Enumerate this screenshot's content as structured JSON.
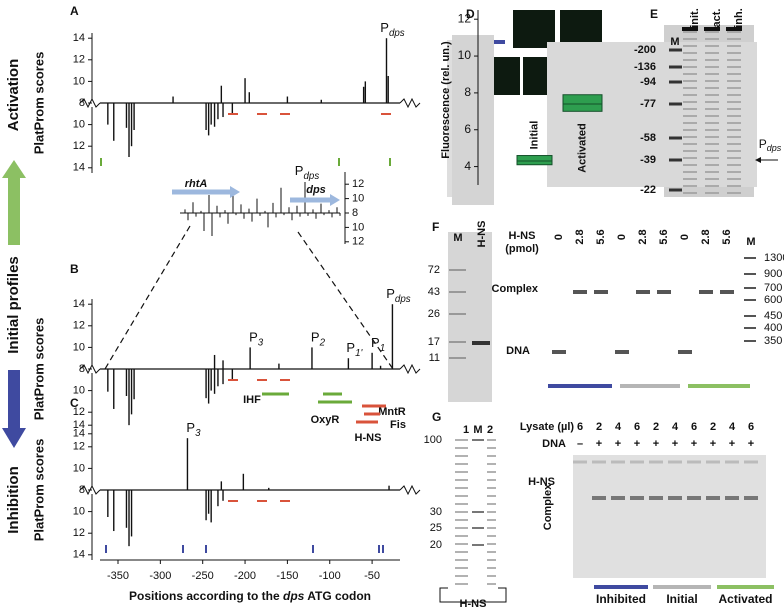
{
  "side_labels": [
    "Activation",
    "Initial profiles",
    "Inhibition"
  ],
  "panel_letters": [
    "A",
    "B",
    "C",
    "D",
    "E",
    "F",
    "G"
  ],
  "profiles": {
    "y_label": "PlatProm scores",
    "upper_ticks": [
      8,
      10,
      12,
      14
    ],
    "lower_ticks": [
      10,
      12,
      14
    ],
    "x_ticks": [
      -350,
      -300,
      -250,
      -200,
      -150,
      -100,
      -50
    ],
    "x_label": [
      "Positions according to the ",
      "dps",
      " ATG codon"
    ],
    "panels": [
      {
        "forward": {
          "positions": [
            -285,
            -228,
            -200,
            -195,
            -150,
            -110,
            -60,
            -58,
            -33,
            -31
          ],
          "scores": [
            8.6,
            9.6,
            10.3,
            9.0,
            8.6,
            8.3,
            9.5,
            10.0,
            14.0,
            10.5
          ]
        },
        "reverse": {
          "positions": [
            -362,
            -355,
            -340,
            -337,
            -334,
            -331,
            -246,
            -243,
            -240,
            -236,
            -232,
            -226,
            -215
          ],
          "scores": [
            10.0,
            11.5,
            10.3,
            13.0,
            12.0,
            10.5,
            10.5,
            11.0,
            10.0,
            10.2,
            9.5,
            9.3,
            9.0
          ]
        },
        "promoters": [
          {
            "name": "P",
            "sub": "dps",
            "position": -33
          }
        ]
      },
      {
        "forward": {
          "positions": [
            -236,
            -226,
            -194,
            -160,
            -121,
            -78,
            -50,
            -40,
            -26
          ],
          "scores": [
            9.3,
            8.8,
            10.0,
            8.5,
            10.0,
            9.0,
            9.5,
            8.3,
            14.0
          ]
        },
        "reverse": {
          "positions": [
            -362,
            -355,
            -340,
            -337,
            -334,
            -331,
            -246,
            -243,
            -240,
            -236,
            -232,
            -226,
            -215
          ],
          "scores": [
            10.1,
            11.7,
            10.5,
            13.2,
            12.2,
            10.8,
            10.7,
            11.2,
            10.0,
            10.3,
            9.6,
            9.4,
            9.0
          ]
        },
        "promoters": [
          {
            "name": "P",
            "sub": "3",
            "position": -194
          },
          {
            "name": "P",
            "sub": "2",
            "position": -121
          },
          {
            "name": "P",
            "sub": "1'",
            "position": -78
          },
          {
            "name": "P",
            "sub": "1",
            "position": -50
          },
          {
            "name": "P",
            "sub": "dps",
            "position": -26
          }
        ]
      },
      {
        "forward": {
          "positions": [
            -268,
            -228,
            -202,
            -172,
            -30
          ],
          "scores": [
            12.8,
            8.8,
            9.5,
            8.2,
            8.4
          ]
        },
        "reverse": {
          "positions": [
            -362,
            -355,
            -340,
            -337,
            -334,
            -246,
            -243,
            -240,
            -232,
            -226
          ],
          "scores": [
            10.5,
            11.8,
            11.5,
            13.2,
            12.3,
            10.8,
            10.2,
            11.0,
            9.5,
            9.0
          ]
        },
        "promoters": [
          {
            "name": "P",
            "sub": "3",
            "position": -268
          }
        ]
      }
    ]
  },
  "inset": {
    "genes": [
      "rhtA",
      "dps"
    ],
    "promoter": {
      "name": "P",
      "sub": "dps"
    },
    "ticks": [
      12,
      10,
      8,
      10,
      12
    ],
    "forward": [
      8.5,
      9.5,
      8.3,
      10.5,
      9.0,
      8.4,
      11.0,
      9.2,
      8.6,
      10.0,
      8.3,
      9.4,
      11.5,
      8.8,
      9.0,
      12.3,
      8.5,
      9.3,
      8.4,
      8.8
    ],
    "reverse": [
      9.0,
      8.5,
      10.5,
      11.2,
      8.6,
      9.5,
      8.3,
      8.8,
      9.2,
      8.4,
      10.0,
      8.6,
      8.3,
      9.0,
      8.5,
      8.4,
      8.8,
      8.3,
      8.6,
      8.4
    ]
  },
  "factors": [
    "IHF",
    "OxyR",
    "MntR",
    "Fis",
    "H-NS"
  ],
  "fluorescence": {
    "type": "box",
    "y_label": "Fluorescence (rel. un.)",
    "ylim": [
      3,
      12.5
    ],
    "yticks": [
      4,
      6,
      8,
      10,
      12
    ],
    "categories": [
      "Initial",
      "Activated"
    ],
    "q1": [
      4.1,
      7.0
    ],
    "median": [
      4.3,
      7.4
    ],
    "q3": [
      4.6,
      7.9
    ],
    "color": "#2e9e4f"
  },
  "gel_e": {
    "lanes": [
      "M",
      "init.",
      "act.",
      "inh."
    ],
    "markers": [
      -200,
      -136,
      -94,
      -77,
      -58,
      -39,
      -22
    ],
    "label": {
      "name": "P",
      "sub": "dps"
    }
  },
  "gel_f": {
    "lanes": [
      "M",
      "H-NS"
    ],
    "markers": [
      72,
      43,
      26,
      17,
      11
    ],
    "amount_label": [
      "H-NS",
      "(pmol)"
    ],
    "amounts": [
      0,
      2.8,
      5.6,
      0,
      2.8,
      5.6,
      0,
      2.8,
      5.6
    ],
    "ladder_lane": "M",
    "bands": [
      "Complex",
      "DNA"
    ],
    "ladder": [
      1300,
      900,
      700,
      600,
      450,
      400,
      350
    ]
  },
  "gel_g": {
    "lanes": [
      "1",
      "M",
      "2"
    ],
    "markers": [
      100,
      30,
      25,
      20
    ],
    "protein": "H-NS",
    "lysate_label": "Lysate (µl)",
    "lysate": [
      6,
      2,
      4,
      6,
      2,
      4,
      6,
      2,
      4,
      6
    ],
    "dna_label": "DNA",
    "dna": [
      "–",
      "+",
      "+",
      "+",
      "+",
      "+",
      "+",
      "+",
      "+",
      "+"
    ],
    "bands": [
      "H-NS",
      "Complex"
    ],
    "groups": [
      "Inhibited",
      "Initial",
      "Activated"
    ]
  }
}
